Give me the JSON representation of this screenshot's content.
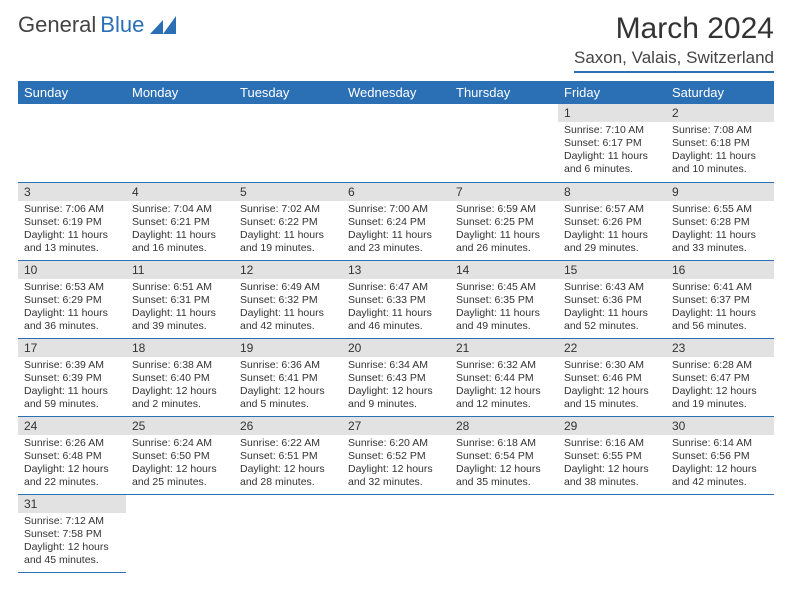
{
  "logo": {
    "text1": "General",
    "text2": "Blue"
  },
  "title": "March 2024",
  "location": "Saxon, Valais, Switzerland",
  "header_bg": "#2b6fb5",
  "days_of_week": [
    "Sunday",
    "Monday",
    "Tuesday",
    "Wednesday",
    "Thursday",
    "Friday",
    "Saturday"
  ],
  "weeks": [
    [
      null,
      null,
      null,
      null,
      null,
      {
        "n": "1",
        "sr": "Sunrise: 7:10 AM",
        "ss": "Sunset: 6:17 PM",
        "dl": "Daylight: 11 hours and 6 minutes."
      },
      {
        "n": "2",
        "sr": "Sunrise: 7:08 AM",
        "ss": "Sunset: 6:18 PM",
        "dl": "Daylight: 11 hours and 10 minutes."
      }
    ],
    [
      {
        "n": "3",
        "sr": "Sunrise: 7:06 AM",
        "ss": "Sunset: 6:19 PM",
        "dl": "Daylight: 11 hours and 13 minutes."
      },
      {
        "n": "4",
        "sr": "Sunrise: 7:04 AM",
        "ss": "Sunset: 6:21 PM",
        "dl": "Daylight: 11 hours and 16 minutes."
      },
      {
        "n": "5",
        "sr": "Sunrise: 7:02 AM",
        "ss": "Sunset: 6:22 PM",
        "dl": "Daylight: 11 hours and 19 minutes."
      },
      {
        "n": "6",
        "sr": "Sunrise: 7:00 AM",
        "ss": "Sunset: 6:24 PM",
        "dl": "Daylight: 11 hours and 23 minutes."
      },
      {
        "n": "7",
        "sr": "Sunrise: 6:59 AM",
        "ss": "Sunset: 6:25 PM",
        "dl": "Daylight: 11 hours and 26 minutes."
      },
      {
        "n": "8",
        "sr": "Sunrise: 6:57 AM",
        "ss": "Sunset: 6:26 PM",
        "dl": "Daylight: 11 hours and 29 minutes."
      },
      {
        "n": "9",
        "sr": "Sunrise: 6:55 AM",
        "ss": "Sunset: 6:28 PM",
        "dl": "Daylight: 11 hours and 33 minutes."
      }
    ],
    [
      {
        "n": "10",
        "sr": "Sunrise: 6:53 AM",
        "ss": "Sunset: 6:29 PM",
        "dl": "Daylight: 11 hours and 36 minutes."
      },
      {
        "n": "11",
        "sr": "Sunrise: 6:51 AM",
        "ss": "Sunset: 6:31 PM",
        "dl": "Daylight: 11 hours and 39 minutes."
      },
      {
        "n": "12",
        "sr": "Sunrise: 6:49 AM",
        "ss": "Sunset: 6:32 PM",
        "dl": "Daylight: 11 hours and 42 minutes."
      },
      {
        "n": "13",
        "sr": "Sunrise: 6:47 AM",
        "ss": "Sunset: 6:33 PM",
        "dl": "Daylight: 11 hours and 46 minutes."
      },
      {
        "n": "14",
        "sr": "Sunrise: 6:45 AM",
        "ss": "Sunset: 6:35 PM",
        "dl": "Daylight: 11 hours and 49 minutes."
      },
      {
        "n": "15",
        "sr": "Sunrise: 6:43 AM",
        "ss": "Sunset: 6:36 PM",
        "dl": "Daylight: 11 hours and 52 minutes."
      },
      {
        "n": "16",
        "sr": "Sunrise: 6:41 AM",
        "ss": "Sunset: 6:37 PM",
        "dl": "Daylight: 11 hours and 56 minutes."
      }
    ],
    [
      {
        "n": "17",
        "sr": "Sunrise: 6:39 AM",
        "ss": "Sunset: 6:39 PM",
        "dl": "Daylight: 11 hours and 59 minutes."
      },
      {
        "n": "18",
        "sr": "Sunrise: 6:38 AM",
        "ss": "Sunset: 6:40 PM",
        "dl": "Daylight: 12 hours and 2 minutes."
      },
      {
        "n": "19",
        "sr": "Sunrise: 6:36 AM",
        "ss": "Sunset: 6:41 PM",
        "dl": "Daylight: 12 hours and 5 minutes."
      },
      {
        "n": "20",
        "sr": "Sunrise: 6:34 AM",
        "ss": "Sunset: 6:43 PM",
        "dl": "Daylight: 12 hours and 9 minutes."
      },
      {
        "n": "21",
        "sr": "Sunrise: 6:32 AM",
        "ss": "Sunset: 6:44 PM",
        "dl": "Daylight: 12 hours and 12 minutes."
      },
      {
        "n": "22",
        "sr": "Sunrise: 6:30 AM",
        "ss": "Sunset: 6:46 PM",
        "dl": "Daylight: 12 hours and 15 minutes."
      },
      {
        "n": "23",
        "sr": "Sunrise: 6:28 AM",
        "ss": "Sunset: 6:47 PM",
        "dl": "Daylight: 12 hours and 19 minutes."
      }
    ],
    [
      {
        "n": "24",
        "sr": "Sunrise: 6:26 AM",
        "ss": "Sunset: 6:48 PM",
        "dl": "Daylight: 12 hours and 22 minutes."
      },
      {
        "n": "25",
        "sr": "Sunrise: 6:24 AM",
        "ss": "Sunset: 6:50 PM",
        "dl": "Daylight: 12 hours and 25 minutes."
      },
      {
        "n": "26",
        "sr": "Sunrise: 6:22 AM",
        "ss": "Sunset: 6:51 PM",
        "dl": "Daylight: 12 hours and 28 minutes."
      },
      {
        "n": "27",
        "sr": "Sunrise: 6:20 AM",
        "ss": "Sunset: 6:52 PM",
        "dl": "Daylight: 12 hours and 32 minutes."
      },
      {
        "n": "28",
        "sr": "Sunrise: 6:18 AM",
        "ss": "Sunset: 6:54 PM",
        "dl": "Daylight: 12 hours and 35 minutes."
      },
      {
        "n": "29",
        "sr": "Sunrise: 6:16 AM",
        "ss": "Sunset: 6:55 PM",
        "dl": "Daylight: 12 hours and 38 minutes."
      },
      {
        "n": "30",
        "sr": "Sunrise: 6:14 AM",
        "ss": "Sunset: 6:56 PM",
        "dl": "Daylight: 12 hours and 42 minutes."
      }
    ],
    [
      {
        "n": "31",
        "sr": "Sunrise: 7:12 AM",
        "ss": "Sunset: 7:58 PM",
        "dl": "Daylight: 12 hours and 45 minutes."
      },
      null,
      null,
      null,
      null,
      null,
      null
    ]
  ]
}
